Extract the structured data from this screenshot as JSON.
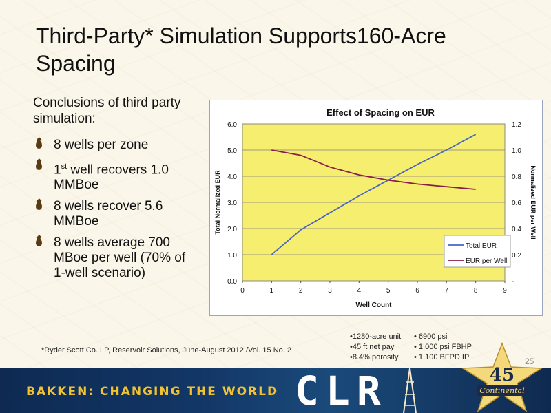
{
  "slide": {
    "title": "Third-Party* Simulation Supports160-Acre Spacing",
    "intro": "Conclusions of third party simulation:",
    "bullets": [
      {
        "pre": "8 wells per zone",
        "sup": "",
        "post": ""
      },
      {
        "pre": "1",
        "sup": "st",
        "post": " well recovers 1.0 MMBoe"
      },
      {
        "pre": "8 wells recover 5.6 MMBoe",
        "sup": "",
        "post": ""
      },
      {
        "pre": "8 wells average 700 MBoe per well (70% of 1-well scenario)",
        "sup": "",
        "post": ""
      }
    ],
    "footnote": "*Ryder Scott Co. LP, Reservoir Solutions, June-August 2012 /Vol. 15 No. 2",
    "facts_left": [
      "•1280-acre unit",
      "•45 ft net pay",
      "•8.4% porosity"
    ],
    "facts_right": [
      "• 6900 psi",
      "• 1,000 psi FBHP",
      "• 1,100 BFPD IP"
    ],
    "page_number": "25",
    "banner_text": "BAKKEN: CHANGING THE WORLD",
    "logo_text": "CLR",
    "badge_number": "45",
    "badge_word": "Continental"
  },
  "colors": {
    "plot_bg": "#f6ee6e",
    "total_eur": "#4a66c0",
    "eur_per_well": "#8a1e48",
    "grid": "#7f7f7f"
  },
  "chart_data": {
    "type": "line",
    "title": "Effect of Spacing on EUR",
    "xlabel": "Well Count",
    "ylabel_left": "Total Normalized EUR",
    "ylabel_right": "Normalized EUR per Well",
    "xlim": [
      0,
      9
    ],
    "ylim_left": [
      0,
      6
    ],
    "ylim_right": [
      0,
      1.2
    ],
    "x_ticks": [
      "0",
      "1",
      "2",
      "3",
      "4",
      "5",
      "6",
      "7",
      "8",
      "9"
    ],
    "y_left_ticks": [
      "0.0",
      "1.0",
      "2.0",
      "3.0",
      "4.0",
      "5.0",
      "6.0"
    ],
    "y_right_ticks": [
      "-",
      "0.2",
      "0.4",
      "0.6",
      "0.8",
      "1.0",
      "1.2"
    ],
    "grid": "horizontal",
    "legend_position": "bottom-right",
    "series": [
      {
        "name": "Total EUR",
        "axis": "left",
        "color": "#4a66c0",
        "x": [
          1,
          2,
          3,
          4,
          5,
          6,
          7,
          8
        ],
        "y": [
          1.0,
          1.95,
          2.6,
          3.25,
          3.85,
          4.45,
          5.0,
          5.6
        ]
      },
      {
        "name": "EUR per Well",
        "axis": "right",
        "color": "#8a1e48",
        "x": [
          1,
          2,
          3,
          4,
          5,
          6,
          7,
          8
        ],
        "y": [
          1.0,
          0.96,
          0.87,
          0.81,
          0.77,
          0.74,
          0.72,
          0.7
        ]
      }
    ]
  }
}
